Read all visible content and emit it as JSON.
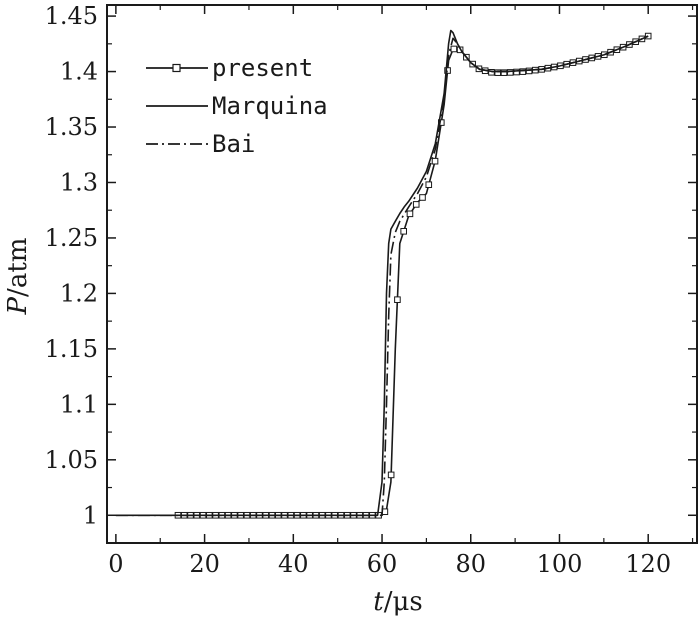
{
  "chart_data": {
    "type": "line",
    "xlabel": {
      "var": "t",
      "sep": "/",
      "unit": "μs"
    },
    "ylabel": {
      "var": "P",
      "sep": "/",
      "unit": "atm"
    },
    "xlim": [
      -2,
      131
    ],
    "ylim": [
      0.975,
      1.46
    ],
    "xticks": [
      0,
      20,
      40,
      60,
      80,
      100,
      120
    ],
    "xtick_labels": [
      "0",
      "20",
      "40",
      "60",
      "80",
      "100",
      "120"
    ],
    "yticks": [
      1,
      1.05,
      1.1,
      1.15,
      1.2,
      1.25,
      1.3,
      1.35,
      1.4,
      1.45
    ],
    "ytick_labels": [
      "1",
      "1.05",
      "1.1",
      "1.15",
      "1.2",
      "1.25",
      "1.3",
      "1.35",
      "1.4",
      "1.45"
    ],
    "legend_position": "top-left",
    "series": [
      {
        "name": "present",
        "style": "solid-square",
        "x": [
          14,
          60,
          61,
          62,
          63,
          64,
          66,
          68,
          70,
          72,
          74,
          75,
          76,
          77,
          78,
          80,
          82,
          85,
          88,
          92,
          96,
          100,
          105,
          110,
          115,
          120
        ],
        "y": [
          1.0,
          1.0,
          1.005,
          1.03,
          1.15,
          1.245,
          1.27,
          1.282,
          1.29,
          1.32,
          1.37,
          1.41,
          1.42,
          1.422,
          1.418,
          1.408,
          1.402,
          1.399,
          1.399,
          1.4,
          1.402,
          1.405,
          1.41,
          1.415,
          1.423,
          1.432
        ]
      },
      {
        "name": "Marquina",
        "style": "solid",
        "x": [
          0,
          59,
          60,
          60.5,
          61,
          61.5,
          62,
          63,
          64,
          65,
          66,
          68,
          70,
          72,
          74,
          75,
          75.5,
          76,
          77,
          78,
          80,
          82,
          85,
          88,
          92,
          96,
          100,
          105,
          110,
          115,
          120
        ],
        "y": [
          1.0,
          1.0,
          1.03,
          1.1,
          1.2,
          1.245,
          1.258,
          1.265,
          1.272,
          1.278,
          1.283,
          1.295,
          1.31,
          1.335,
          1.38,
          1.425,
          1.437,
          1.435,
          1.425,
          1.418,
          1.408,
          1.402,
          1.4,
          1.4,
          1.401,
          1.402,
          1.405,
          1.41,
          1.415,
          1.423,
          1.432
        ]
      },
      {
        "name": "Bai",
        "style": "dashdot",
        "x": [
          0,
          60,
          60.5,
          61,
          61.5,
          62,
          63,
          64,
          66,
          68,
          70,
          72,
          74,
          75,
          76,
          77,
          78,
          80,
          82,
          85,
          88,
          92,
          96,
          100,
          105,
          110,
          115,
          120
        ],
        "y": [
          1.0,
          1.0,
          1.03,
          1.1,
          1.18,
          1.235,
          1.255,
          1.265,
          1.278,
          1.29,
          1.305,
          1.33,
          1.375,
          1.415,
          1.43,
          1.425,
          1.418,
          1.408,
          1.402,
          1.4,
          1.4,
          1.401,
          1.402,
          1.405,
          1.41,
          1.415,
          1.423,
          1.432
        ]
      }
    ]
  }
}
